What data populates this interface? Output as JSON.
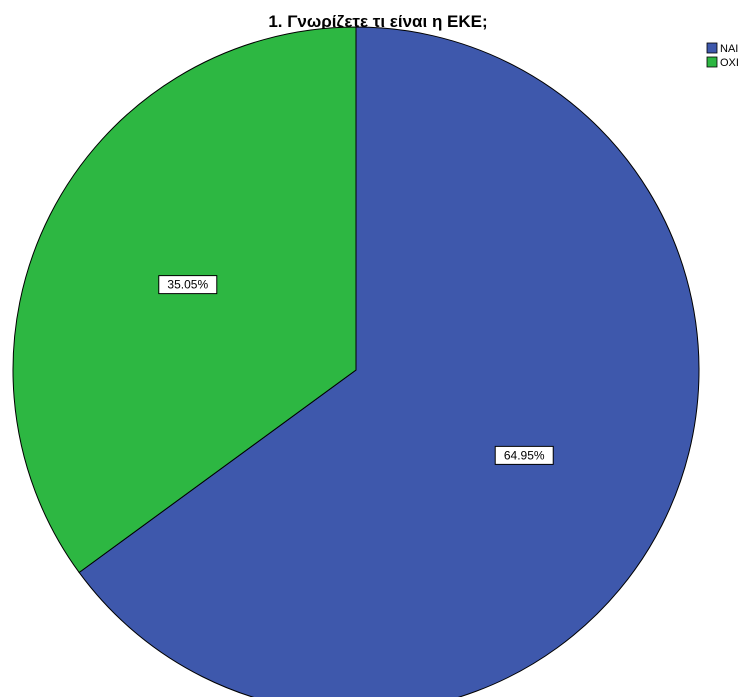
{
  "chart_data": {
    "type": "pie",
    "title": "1. Γνωρίζετε τι είναι η ΕΚΕ;",
    "categories": [
      "ΝΑΙ",
      "ΟΧΙ"
    ],
    "values": [
      64.95,
      35.05
    ],
    "data_labels": [
      "64.95%",
      "35.05%"
    ],
    "colors": [
      "#3E58AC",
      "#2DB742"
    ],
    "start_angle": "12 o'clock",
    "direction": "clockwise",
    "legend": {
      "position": "top-right",
      "entries": [
        "ΝΑΙ",
        "ΟΧΙ"
      ]
    }
  }
}
